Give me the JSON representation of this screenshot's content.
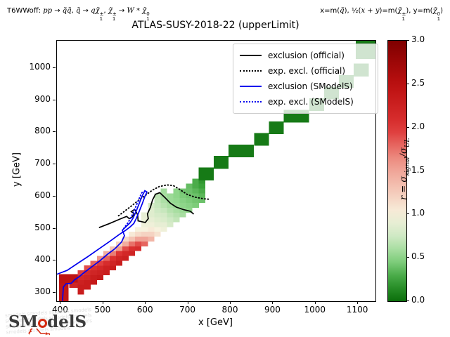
{
  "annotations": {
    "process_html": "T6WWoff: <i>pp</i> → <i>q̃q̃</i>, <i>q̃</i> → <i>qχ̃</i><span class=\"stk\"><span>±</span><span>1</span></span>, <i>χ̃</i><span class=\"stk\"><span>±</span><span>1</span></span> → <i>W</i> * <i>χ̃</i><span class=\"stk\"><span>0</span><span>1</span></span>",
    "plane_html": "x=m(<i>q̃</i>), ½(<i>x</i> + <i>y</i>)=m(<i>χ̃</i><span class=\"stk\"><span>±</span><span>1</span></span>), y=m(<i>χ̃</i><span class=\"stk\"><span>0</span><span>1</span></span>)"
  },
  "logo": {
    "prefix": "SM",
    "suffix": "delS"
  },
  "chart_data": {
    "type": "heatmap",
    "title": "ATLAS-SUSY-2018-22 (upperLimit)",
    "xlabel": "x [GeV]",
    "ylabel": "y [GeV]",
    "xlim": [
      391,
      1141
    ],
    "ylim": [
      274,
      1085
    ],
    "xticks": [
      400,
      500,
      600,
      700,
      800,
      900,
      1000,
      1100
    ],
    "yticks": [
      300,
      400,
      500,
      600,
      700,
      800,
      900,
      1000
    ],
    "grid": false,
    "colorbar": {
      "label_html": "r = σ<sub>signal</sub>/σ<sub>UL</sub>",
      "ticks": [
        "0.0",
        "0.5",
        "1.0",
        "1.5",
        "2.0",
        "2.5",
        "3.0"
      ],
      "min": 0,
      "max": 3
    },
    "colormap_stops": [
      [
        0.0,
        [
          11,
          110,
          11
        ]
      ],
      [
        0.25,
        [
          58,
          162,
          58
        ]
      ],
      [
        0.5,
        [
          142,
          214,
          138
        ]
      ],
      [
        0.75,
        [
          207,
          233,
          196
        ]
      ],
      [
        1.0,
        [
          247,
          242,
          222
        ]
      ],
      [
        1.3,
        [
          244,
          196,
          180
        ]
      ],
      [
        1.6,
        [
          238,
          150,
          138
        ]
      ],
      [
        2.0,
        [
          221,
          51,
          51
        ]
      ],
      [
        2.5,
        [
          187,
          15,
          15
        ]
      ],
      [
        3.0,
        [
          127,
          0,
          0
        ]
      ]
    ],
    "legend": [
      {
        "label": "exclusion (official)",
        "color": "#000000",
        "style": "solid"
      },
      {
        "label": "exp. excl. (official)",
        "color": "#000000",
        "style": "dotted"
      },
      {
        "label": "exclusion (SModelS)",
        "color": "#0000ee",
        "style": "solid"
      },
      {
        "label": "exp. excl. (SModelS)",
        "color": "#0000ee",
        "style": "dotted"
      }
    ],
    "cells": [
      [
        396,
        274,
        2.4,
        22,
        76
      ],
      [
        396,
        330,
        2.45,
        45,
        28
      ],
      [
        420,
        316,
        2.2,
        20,
        16
      ],
      [
        440,
        295,
        2.3
      ],
      [
        440,
        310,
        2.3
      ],
      [
        440,
        325,
        2.25
      ],
      [
        440,
        340,
        2.15
      ],
      [
        440,
        355,
        1.95
      ],
      [
        455,
        310,
        2.3
      ],
      [
        455,
        325,
        2.3
      ],
      [
        455,
        340,
        2.2
      ],
      [
        455,
        355,
        2.1
      ],
      [
        455,
        370,
        1.9
      ],
      [
        470,
        325,
        2.35
      ],
      [
        470,
        340,
        2.3
      ],
      [
        470,
        355,
        2.2
      ],
      [
        470,
        370,
        2.05
      ],
      [
        470,
        385,
        1.8
      ],
      [
        485,
        340,
        2.35
      ],
      [
        485,
        355,
        2.25
      ],
      [
        485,
        370,
        2.15
      ],
      [
        485,
        385,
        1.95
      ],
      [
        485,
        400,
        1.6
      ],
      [
        500,
        355,
        2.3
      ],
      [
        500,
        370,
        2.25
      ],
      [
        500,
        385,
        2.1
      ],
      [
        500,
        400,
        1.8
      ],
      [
        500,
        415,
        1.45
      ],
      [
        515,
        370,
        2.3
      ],
      [
        515,
        385,
        2.2
      ],
      [
        515,
        400,
        2.05
      ],
      [
        515,
        415,
        1.7
      ],
      [
        515,
        430,
        1.3
      ],
      [
        530,
        385,
        2.3
      ],
      [
        530,
        400,
        2.2
      ],
      [
        530,
        415,
        2.0
      ],
      [
        530,
        430,
        1.55
      ],
      [
        530,
        445,
        1.2
      ],
      [
        545,
        400,
        2.25
      ],
      [
        545,
        415,
        2.15
      ],
      [
        545,
        430,
        1.9
      ],
      [
        545,
        445,
        1.45
      ],
      [
        545,
        460,
        1.15
      ],
      [
        560,
        415,
        2.2
      ],
      [
        560,
        430,
        2.05
      ],
      [
        560,
        445,
        1.75
      ],
      [
        560,
        460,
        1.3
      ],
      [
        560,
        475,
        1.05
      ],
      [
        575,
        430,
        2.1
      ],
      [
        575,
        445,
        1.9
      ],
      [
        575,
        460,
        1.5
      ],
      [
        575,
        475,
        1.15
      ],
      [
        575,
        490,
        1.0
      ],
      [
        590,
        445,
        1.8
      ],
      [
        590,
        460,
        1.5
      ],
      [
        590,
        475,
        1.2
      ],
      [
        590,
        490,
        1.0
      ],
      [
        590,
        505,
        0.95
      ],
      [
        590,
        520,
        0.92
      ],
      [
        590,
        535,
        0.9
      ],
      [
        605,
        460,
        1.4
      ],
      [
        605,
        475,
        1.2
      ],
      [
        605,
        490,
        1.05
      ],
      [
        605,
        505,
        0.95
      ],
      [
        605,
        520,
        0.9
      ],
      [
        605,
        535,
        0.85
      ],
      [
        605,
        550,
        0.85
      ],
      [
        605,
        565,
        0.8
      ],
      [
        620,
        475,
        1.1
      ],
      [
        620,
        490,
        1.0
      ],
      [
        620,
        505,
        0.9
      ],
      [
        620,
        520,
        0.85
      ],
      [
        620,
        535,
        0.8
      ],
      [
        620,
        550,
        0.75
      ],
      [
        620,
        565,
        0.72
      ],
      [
        620,
        580,
        0.7
      ],
      [
        620,
        595,
        0.68
      ],
      [
        635,
        490,
        0.95
      ],
      [
        635,
        505,
        0.9
      ],
      [
        635,
        520,
        0.82
      ],
      [
        635,
        535,
        0.78
      ],
      [
        635,
        550,
        0.72
      ],
      [
        635,
        565,
        0.66
      ],
      [
        635,
        580,
        0.62
      ],
      [
        635,
        595,
        0.6
      ],
      [
        635,
        610,
        0.58
      ],
      [
        650,
        505,
        0.8
      ],
      [
        650,
        520,
        0.75
      ],
      [
        650,
        535,
        0.7
      ],
      [
        650,
        550,
        0.65
      ],
      [
        650,
        565,
        0.6
      ],
      [
        650,
        580,
        0.55
      ],
      [
        650,
        595,
        0.55
      ],
      [
        665,
        520,
        0.7
      ],
      [
        665,
        535,
        0.65
      ],
      [
        665,
        550,
        0.6
      ],
      [
        665,
        565,
        0.55
      ],
      [
        665,
        580,
        0.52
      ],
      [
        665,
        595,
        0.5
      ],
      [
        665,
        610,
        0.5
      ],
      [
        680,
        535,
        0.6
      ],
      [
        680,
        550,
        0.55
      ],
      [
        680,
        565,
        0.5
      ],
      [
        680,
        580,
        0.48
      ],
      [
        680,
        595,
        0.45
      ],
      [
        680,
        610,
        0.42
      ],
      [
        695,
        550,
        0.5
      ],
      [
        695,
        565,
        0.48
      ],
      [
        695,
        580,
        0.45
      ],
      [
        695,
        595,
        0.42
      ],
      [
        695,
        610,
        0.4
      ],
      [
        695,
        625,
        0.38
      ],
      [
        710,
        565,
        0.45
      ],
      [
        710,
        580,
        0.42
      ],
      [
        710,
        595,
        0.4
      ],
      [
        710,
        610,
        0.35
      ],
      [
        710,
        625,
        0.3
      ],
      [
        710,
        640,
        0.3
      ],
      [
        725,
        580,
        0.4
      ],
      [
        725,
        595,
        0.35
      ],
      [
        725,
        610,
        0.3
      ],
      [
        725,
        625,
        0.25
      ],
      [
        725,
        640,
        0.2
      ],
      [
        725,
        650,
        0.06,
        35,
        40
      ],
      [
        760,
        686,
        0.06,
        35,
        40
      ],
      [
        795,
        722,
        0.06,
        60,
        40
      ],
      [
        855,
        758,
        0.06,
        35,
        40
      ],
      [
        890,
        794,
        0.06,
        35,
        40
      ],
      [
        925,
        830,
        0.06,
        60,
        40
      ],
      [
        985,
        866,
        0.06,
        35,
        40
      ],
      [
        1020,
        902,
        0.06,
        35,
        40
      ],
      [
        1055,
        938,
        0.06,
        35,
        40
      ],
      [
        1090,
        974,
        0.06,
        35,
        40
      ],
      [
        1095,
        1028,
        0.06,
        46,
        57
      ]
    ],
    "contours": [
      {
        "name": "exclusion-official",
        "color": "#000000",
        "dash": null,
        "width": 1.7,
        "points": [
          [
            490,
            503
          ],
          [
            515,
            516
          ],
          [
            540,
            530
          ],
          [
            555,
            538
          ],
          [
            561,
            531
          ],
          [
            568,
            536
          ],
          [
            573,
            546
          ],
          [
            566,
            553
          ],
          [
            574,
            560
          ],
          [
            581,
            543
          ],
          [
            582,
            524
          ],
          [
            599,
            519
          ],
          [
            606,
            531
          ],
          [
            604,
            546
          ],
          [
            611,
            566
          ],
          [
            616,
            589
          ],
          [
            623,
            607
          ],
          [
            633,
            612
          ],
          [
            645,
            597
          ],
          [
            658,
            579
          ],
          [
            672,
            567
          ],
          [
            689,
            559
          ],
          [
            705,
            554
          ],
          [
            713,
            545
          ]
        ]
      },
      {
        "name": "exp-excl-official",
        "color": "#000000",
        "dash": "1,3.4",
        "width": 1.9,
        "points": [
          [
            536,
            540
          ],
          [
            552,
            556
          ],
          [
            567,
            571
          ],
          [
            583,
            588
          ],
          [
            600,
            604
          ],
          [
            616,
            620
          ],
          [
            632,
            631
          ],
          [
            650,
            636
          ],
          [
            665,
            634
          ],
          [
            680,
            622
          ],
          [
            697,
            607
          ],
          [
            716,
            598
          ],
          [
            736,
            593
          ],
          [
            753,
            591
          ]
        ]
      },
      {
        "name": "exclusion-smodels",
        "color": "#0000ee",
        "dash": null,
        "width": 1.7,
        "points": [
          [
            391,
            358
          ],
          [
            415,
            370
          ],
          [
            440,
            392
          ],
          [
            465,
            414
          ],
          [
            490,
            437
          ],
          [
            515,
            460
          ],
          [
            538,
            482
          ],
          [
            552,
            494
          ],
          [
            563,
            505
          ],
          [
            572,
            516
          ],
          [
            578,
            532
          ],
          [
            585,
            555
          ],
          [
            592,
            578
          ],
          [
            598,
            600
          ],
          [
            603,
            614
          ],
          [
            598,
            618
          ],
          [
            591,
            600
          ],
          [
            584,
            576
          ],
          [
            577,
            552
          ],
          [
            570,
            532
          ],
          [
            563,
            518
          ],
          [
            553,
            505
          ],
          [
            545,
            495
          ],
          [
            550,
            478
          ],
          [
            543,
            458
          ],
          [
            528,
            438
          ],
          [
            510,
            420
          ],
          [
            492,
            400
          ],
          [
            472,
            380
          ],
          [
            452,
            360
          ],
          [
            445,
            352
          ],
          [
            432,
            340
          ],
          [
            425,
            330
          ],
          [
            412,
            328
          ],
          [
            406,
            318
          ],
          [
            404,
            275
          ]
        ]
      },
      {
        "name": "exp-excl-smodels",
        "color": "#0000ee",
        "dash": "1,3.4",
        "width": 1.9,
        "points": [
          [
            548,
            500
          ],
          [
            558,
            518
          ],
          [
            566,
            536
          ],
          [
            573,
            556
          ],
          [
            579,
            576
          ],
          [
            585,
            595
          ],
          [
            590,
            610
          ],
          [
            594,
            617
          ]
        ]
      }
    ]
  }
}
